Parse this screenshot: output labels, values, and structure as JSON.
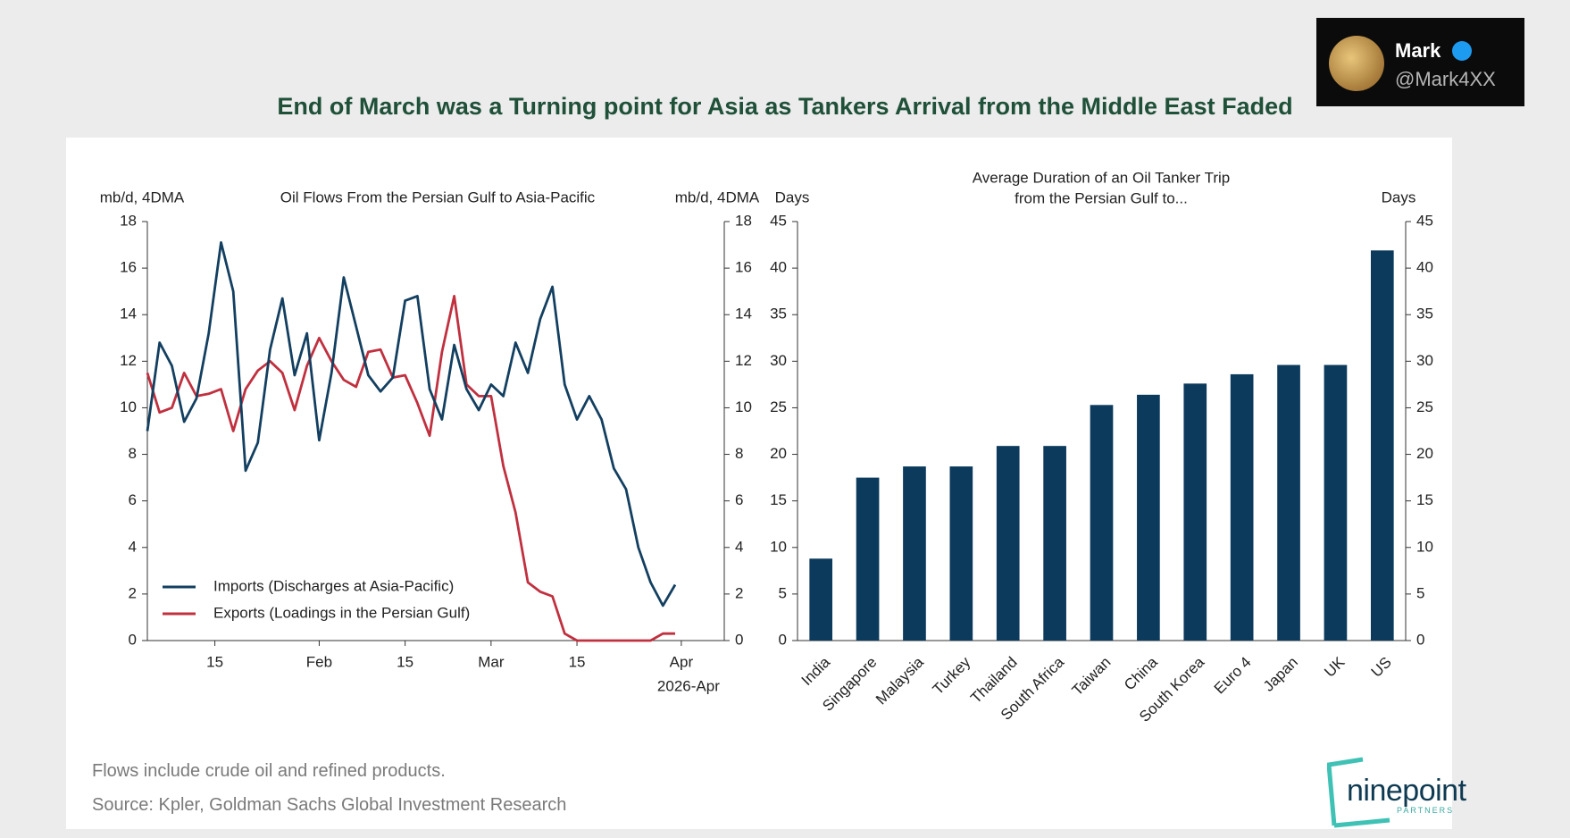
{
  "title": "End of March was a Turning point for Asia as Tankers Arrival from the Middle East Faded",
  "overlay": {
    "name": "Mark",
    "handle": "@Mark4XX"
  },
  "notes": [
    "Flows include crude oil and refined products.",
    "Source: Kpler, Goldman Sachs Global Investment Research"
  ],
  "logo": {
    "name": "ninepoint",
    "tagline": "PARTNERS"
  },
  "chart_data": [
    {
      "type": "line",
      "title": "Oil Flows From the Persian Gulf to Asia-Pacific",
      "ylabel": "mb/d, 4DMA",
      "y2label": "mb/d, 4DMA",
      "x": [
        "2026-01-04",
        "2026-01-06",
        "2026-01-08",
        "2026-01-10",
        "2026-01-12",
        "2026-01-14",
        "2026-01-16",
        "2026-01-18",
        "2026-01-20",
        "2026-01-22",
        "2026-01-24",
        "2026-01-26",
        "2026-01-28",
        "2026-01-30",
        "2026-02-01",
        "2026-02-03",
        "2026-02-05",
        "2026-02-07",
        "2026-02-09",
        "2026-02-11",
        "2026-02-13",
        "2026-02-15",
        "2026-02-17",
        "2026-02-19",
        "2026-02-21",
        "2026-02-23",
        "2026-02-25",
        "2026-02-27",
        "2026-03-01",
        "2026-03-03",
        "2026-03-05",
        "2026-03-07",
        "2026-03-09",
        "2026-03-11",
        "2026-03-13",
        "2026-03-15",
        "2026-03-17",
        "2026-03-19",
        "2026-03-21",
        "2026-03-23",
        "2026-03-25",
        "2026-03-27",
        "2026-03-29",
        "2026-03-31"
      ],
      "xlim": [
        "2026-01-04",
        "2026-04-08"
      ],
      "xticks": [
        {
          "value": "2026-01-15",
          "label": "15"
        },
        {
          "value": "2026-02-01",
          "label": "Feb"
        },
        {
          "value": "2026-02-15",
          "label": "15"
        },
        {
          "value": "2026-03-01",
          "label": "Mar"
        },
        {
          "value": "2026-03-15",
          "label": "15"
        },
        {
          "value": "2026-04-01",
          "label": "Apr"
        }
      ],
      "xlabel": "2026-Apr",
      "ylim": [
        0,
        18
      ],
      "yticks": [
        0,
        2,
        4,
        6,
        8,
        10,
        12,
        14,
        16,
        18
      ],
      "y2lim": [
        0,
        18
      ],
      "y2ticks": [
        0,
        2,
        4,
        6,
        8,
        10,
        12,
        14,
        16,
        18
      ],
      "legend": "lower left",
      "series": [
        {
          "name": "Imports (Discharges at Asia-Pacific)",
          "color": "#133f60",
          "values": [
            9.0,
            12.8,
            11.8,
            9.4,
            10.4,
            13.2,
            17.1,
            15.0,
            7.3,
            8.5,
            12.5,
            14.7,
            11.4,
            13.2,
            8.6,
            11.5,
            15.6,
            13.5,
            11.4,
            10.7,
            11.3,
            14.6,
            14.8,
            10.8,
            9.5,
            12.7,
            10.8,
            9.9,
            11.0,
            10.5,
            12.8,
            11.5,
            13.8,
            15.2,
            11.0,
            9.5,
            10.5,
            9.5,
            7.4,
            6.5,
            4.0,
            2.5,
            1.5,
            2.4
          ]
        },
        {
          "name": "Exports (Loadings in the Persian Gulf)",
          "color": "#c0303f",
          "values": [
            11.5,
            9.8,
            10.0,
            11.5,
            10.5,
            10.6,
            10.8,
            9.0,
            10.8,
            11.6,
            12.0,
            11.5,
            9.9,
            11.8,
            13.0,
            12.0,
            11.2,
            10.9,
            12.4,
            12.5,
            11.3,
            11.4,
            10.2,
            8.8,
            12.4,
            14.8,
            11.0,
            10.5,
            10.5,
            7.5,
            5.5,
            2.5,
            2.1,
            1.9,
            0.3,
            0.0,
            0.0,
            0.0,
            0.0,
            0.0,
            0.0,
            0.0,
            0.3,
            0.3
          ]
        }
      ]
    },
    {
      "type": "bar",
      "title": [
        "Average Duration of an Oil Tanker Trip",
        "from the Persian Gulf to..."
      ],
      "ylabel": "Days",
      "y2label": "Days",
      "categories": [
        "India",
        "Singapore",
        "Malaysia",
        "Turkey",
        "Thailand",
        "South Africa",
        "Taiwan",
        "China",
        "South Korea",
        "Euro 4",
        "Japan",
        "UK",
        "US"
      ],
      "values": [
        8.8,
        17.5,
        18.7,
        18.7,
        20.9,
        20.9,
        25.3,
        26.4,
        27.6,
        28.6,
        29.6,
        29.6,
        41.9
      ],
      "color": "#0c3a5c",
      "ylim": [
        0,
        45
      ],
      "yticks": [
        0,
        5,
        10,
        15,
        20,
        25,
        30,
        35,
        40,
        45
      ],
      "y2lim": [
        0,
        45
      ],
      "y2ticks": [
        0,
        5,
        10,
        15,
        20,
        25,
        30,
        35,
        40,
        45
      ]
    }
  ]
}
